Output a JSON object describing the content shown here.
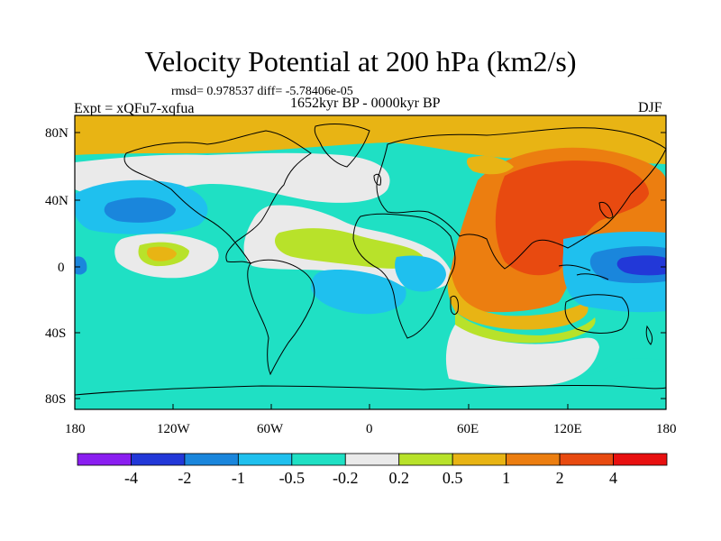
{
  "title": "Velocity Potential at 200 hPa (km2/s)",
  "stats": "rmsd= 0.978537 diff= -5.78406e-05",
  "experiment": "Expt = xQFu7-xqfua",
  "period": "1652kyr BP - 0000kyr BP",
  "season": "DJF",
  "lat_labels": [
    "80N",
    "40N",
    "0",
    "40S",
    "80S"
  ],
  "lon_labels": [
    "180",
    "120W",
    "60W",
    "0",
    "60E",
    "120E",
    "180"
  ],
  "colorbar": {
    "labels": [
      "-4",
      "-2",
      "-1",
      "-0.5",
      "-0.2",
      "0.2",
      "0.5",
      "1",
      "2",
      "4"
    ],
    "colors": [
      "#8a1ef0",
      "#2238d8",
      "#1a86dc",
      "#1fc0ee",
      "#1fe0c4",
      "#eaeaea",
      "#b8e22a",
      "#e8b414",
      "#ec7e10",
      "#e84a10",
      "#e81010"
    ]
  },
  "colors": {
    "background_field": "#1fe0c4",
    "coastline": "#000000"
  }
}
